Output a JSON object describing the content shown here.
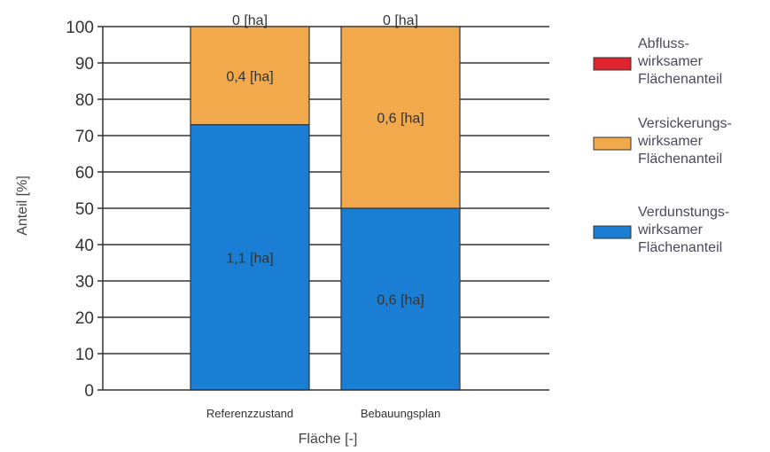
{
  "chart_data": {
    "type": "bar",
    "stacked": true,
    "categories": [
      "Referenzzustand",
      "Bebauungsplan"
    ],
    "series": [
      {
        "name": "Verdunstungs-wirksamer Flächenanteil",
        "legend_lines": [
          "Verdunstungs-",
          "wirksamer",
          "Flächenanteil"
        ],
        "color": "#1a7fd4",
        "values": [
          73,
          50
        ],
        "labels": [
          "1,1 [ha]",
          "0,6 [ha]"
        ]
      },
      {
        "name": "Versickerungs-wirksamer Flächenanteil",
        "legend_lines": [
          "Versickerungs-",
          "wirksamer",
          "Flächenanteil"
        ],
        "color": "#f2a94b",
        "values": [
          27,
          50
        ],
        "labels": [
          "0,4 [ha]",
          "0,6 [ha]"
        ]
      },
      {
        "name": "Abfluss-wirksamer Flächenanteil",
        "legend_lines": [
          "Abfluss-",
          "wirksamer",
          "Flächenanteil"
        ],
        "color": "#e0242f",
        "values": [
          0,
          0
        ],
        "labels": [
          "0 [ha]",
          "0 [ha]"
        ]
      }
    ],
    "xlabel": "Fläche [-]",
    "ylabel": "Anteil [%]",
    "ylim": [
      0,
      100
    ],
    "yticks": [
      0,
      10,
      20,
      30,
      40,
      50,
      60,
      70,
      80,
      90,
      100
    ],
    "grid": true,
    "legend_position": "right",
    "text_color": "#333333",
    "legend_text_color": "#4a4a5a"
  }
}
